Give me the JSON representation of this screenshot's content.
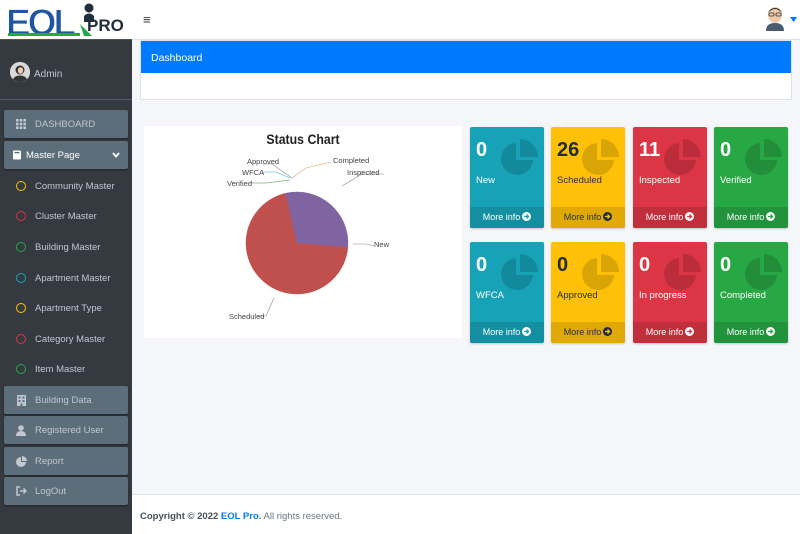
{
  "brand": {
    "logo_letters": "EOL",
    "logo_suffix": "PRO"
  },
  "user": {
    "name": "Admin"
  },
  "header": {
    "menu_glyph": "≡"
  },
  "sidebar": {
    "items": [
      {
        "label": "DASHBOARD",
        "icon": "th-icon"
      },
      {
        "label": "Master Page",
        "icon": "book-icon"
      },
      {
        "label": "Community Master",
        "icon": "circle-icon",
        "color": "#ffc107"
      },
      {
        "label": "Cluster Master",
        "icon": "circle-icon",
        "color": "#dc3545"
      },
      {
        "label": "Building Master",
        "icon": "circle-icon",
        "color": "#28a745"
      },
      {
        "label": "Apartment Master",
        "icon": "circle-icon",
        "color": "#17a2b8"
      },
      {
        "label": "Apartment Type",
        "icon": "circle-icon",
        "color": "#ffc107"
      },
      {
        "label": "Category Master",
        "icon": "circle-icon",
        "color": "#dc3545"
      },
      {
        "label": "Item Master",
        "icon": "circle-icon",
        "color": "#28a745"
      },
      {
        "label": "Building Data",
        "icon": "building-icon"
      },
      {
        "label": "Registered User",
        "icon": "user-icon"
      },
      {
        "label": "Report",
        "icon": "chart-pie-icon"
      },
      {
        "label": "LogOut",
        "icon": "sign-out-icon"
      }
    ]
  },
  "dashboard": {
    "title": "Dashboard"
  },
  "chart_data": {
    "type": "pie",
    "title": "Status Chart",
    "categories": [
      "New",
      "Scheduled",
      "Inspected",
      "Verified",
      "WFCA",
      "Approved",
      "In progress",
      "Completed"
    ],
    "values": [
      0,
      26,
      11,
      0,
      0,
      0,
      0,
      0
    ],
    "label_texts": [
      "Approved",
      "Completed",
      "WFCA",
      "Inspected",
      "Verified",
      "New",
      "Scheduled"
    ],
    "colors": {
      "Scheduled": "#c0504d",
      "Inspected": "#8064a2"
    }
  },
  "stats": [
    {
      "value": "0",
      "label": "New",
      "link": "More info",
      "color": "teal"
    },
    {
      "value": "26",
      "label": "Scheduled",
      "link": "More info",
      "color": "yellow"
    },
    {
      "value": "11",
      "label": "Inspected",
      "link": "More info",
      "color": "red"
    },
    {
      "value": "0",
      "label": "Verified",
      "link": "More info",
      "color": "green"
    },
    {
      "value": "0",
      "label": "WFCA",
      "link": "More info",
      "color": "teal"
    },
    {
      "value": "0",
      "label": "Approved",
      "link": "More info",
      "color": "yellow"
    },
    {
      "value": "0",
      "label": "In progress",
      "link": "More info",
      "color": "red"
    },
    {
      "value": "0",
      "label": "Completed",
      "link": "More info",
      "color": "green"
    }
  ],
  "footer": {
    "copyright": "Copyright © 2022",
    "brand": "EOL Pro.",
    "rights": "All rights reserved."
  }
}
